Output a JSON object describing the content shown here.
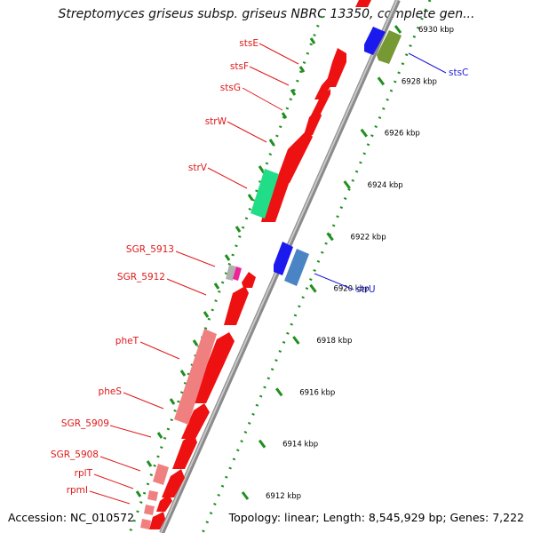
{
  "header": {
    "title": "Streptomyces griseus subsp. griseus NBRC 13350, complete gen..."
  },
  "footer": {
    "accession": "Accession: NC_010572",
    "summary": "Topology: linear; Length: 8,545,929 bp; Genes: 7,222"
  },
  "colors": {
    "backbone": "#8a8a8a",
    "tick_dots": "#1f8f1f",
    "label_red": "#e01818",
    "label_blue": "#1a1ad6"
  },
  "scale": {
    "ticks": [
      "6930 kbp",
      "6928 kbp",
      "6926 kbp",
      "6924 kbp",
      "6922 kbp",
      "6920 kbp",
      "6918 kbp",
      "6916 kbp",
      "6914 kbp",
      "6912 kbp"
    ]
  },
  "genes": {
    "left_labels": [
      "stsE",
      "stsF",
      "stsG",
      "strW",
      "strV",
      "SGR_5913",
      "SGR_5912",
      "pheT",
      "pheS",
      "SGR_5909",
      "SGR_5908",
      "rplT",
      "rpmI"
    ],
    "right_labels": [
      "stsC",
      "strU"
    ]
  }
}
